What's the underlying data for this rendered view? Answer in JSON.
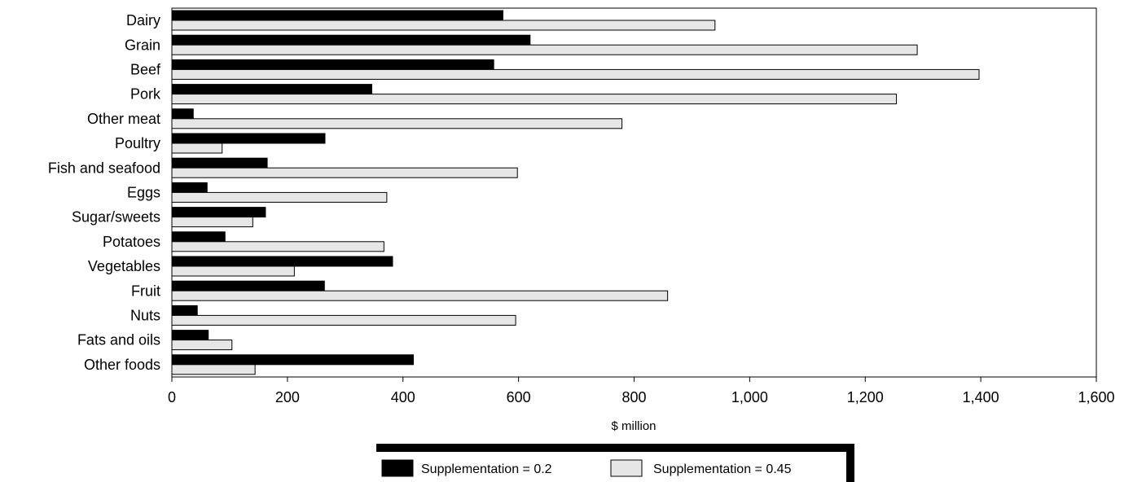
{
  "chart_data": {
    "type": "bar",
    "orientation": "horizontal",
    "categories": [
      "Dairy",
      "Grain",
      "Beef",
      "Pork",
      "Other meat",
      "Poultry",
      "Fish and seafood",
      "Eggs",
      "Sugar/sweets",
      "Potatoes",
      "Vegetables",
      "Fruit",
      "Nuts",
      "Fats and oils",
      "Other foods"
    ],
    "series": [
      {
        "name": "Supplementation = 0.2",
        "color": "#000000",
        "values": [
          573,
          620,
          557,
          346,
          37,
          265,
          165,
          61,
          162,
          92,
          382,
          264,
          44,
          63,
          418
        ]
      },
      {
        "name": "Supplementation = 0.45",
        "color": "#e6e6e6",
        "values": [
          940,
          1290,
          1397,
          1254,
          779,
          87,
          598,
          372,
          140,
          367,
          212,
          858,
          595,
          104,
          144
        ]
      }
    ],
    "xlabel": "$ million",
    "ylabel": "",
    "xlim": [
      0,
      1600
    ],
    "xticks": [
      0,
      200,
      400,
      600,
      800,
      1000,
      1200,
      1400,
      1600
    ],
    "xtick_labels": [
      "0",
      "200",
      "400",
      "600",
      "800",
      "1,000",
      "1,200",
      "1,400",
      "1,600"
    ],
    "grid": false,
    "legend_position": "bottom-center"
  }
}
